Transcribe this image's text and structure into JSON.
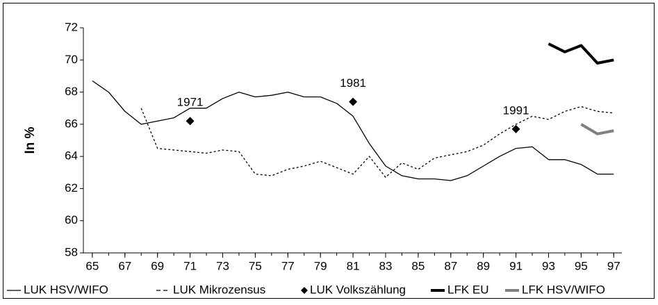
{
  "chart_data": {
    "type": "line",
    "y_label": "In %",
    "x": [
      65,
      66,
      67,
      68,
      69,
      70,
      71,
      72,
      73,
      74,
      75,
      76,
      77,
      78,
      79,
      80,
      81,
      82,
      83,
      84,
      85,
      86,
      87,
      88,
      89,
      90,
      91,
      92,
      93,
      94,
      95,
      96,
      97
    ],
    "xlim": [
      64.45,
      97.5
    ],
    "xticks": [
      65,
      67,
      69,
      71,
      73,
      75,
      77,
      79,
      81,
      83,
      85,
      87,
      89,
      91,
      93,
      95,
      97
    ],
    "ylim": [
      58,
      72
    ],
    "yticks": [
      58,
      60,
      62,
      64,
      66,
      68,
      70,
      72
    ],
    "series": [
      {
        "name": "LUK HSV/WIFO",
        "color": "#000000",
        "style": "solid",
        "width": 1.3,
        "values": [
          68.7,
          68.0,
          66.8,
          66.0,
          66.2,
          66.4,
          67.0,
          67.0,
          67.6,
          68.0,
          67.7,
          67.8,
          68.0,
          67.7,
          67.7,
          67.3,
          66.5,
          64.8,
          63.4,
          62.8,
          62.6,
          62.6,
          62.5,
          62.8,
          63.4,
          64.0,
          64.5,
          64.6,
          63.8,
          63.8,
          63.5,
          62.9,
          62.9
        ]
      },
      {
        "name": "LUK Mikrozensus",
        "color": "#000000",
        "style": "dashed",
        "width": 1.3,
        "values": [
          null,
          null,
          null,
          67.0,
          64.5,
          64.4,
          64.3,
          64.2,
          64.4,
          64.3,
          62.9,
          62.8,
          63.2,
          63.4,
          63.7,
          63.3,
          62.9,
          64.0,
          62.7,
          63.6,
          63.2,
          63.9,
          64.1,
          64.3,
          64.7,
          65.4,
          66.0,
          66.5,
          66.3,
          66.8,
          67.1,
          66.8,
          66.7
        ]
      },
      {
        "name": "LUK Volkszählung",
        "color": "#000000",
        "style": "markers",
        "width": 1,
        "values": [
          null,
          null,
          null,
          null,
          null,
          null,
          66.2,
          null,
          null,
          null,
          null,
          null,
          null,
          null,
          null,
          null,
          67.4,
          null,
          null,
          null,
          null,
          null,
          null,
          null,
          null,
          null,
          65.7,
          null,
          null,
          null,
          null,
          null,
          null
        ]
      },
      {
        "name": "LFK EU",
        "color": "#000000",
        "style": "solid",
        "width": 4,
        "values": [
          null,
          null,
          null,
          null,
          null,
          null,
          null,
          null,
          null,
          null,
          null,
          null,
          null,
          null,
          null,
          null,
          null,
          null,
          null,
          null,
          null,
          null,
          null,
          null,
          null,
          null,
          null,
          null,
          71.0,
          70.5,
          70.9,
          69.8,
          70.0
        ]
      },
      {
        "name": "LFK HSV/WIFO",
        "color": "#808080",
        "style": "solid",
        "width": 4,
        "values": [
          null,
          null,
          null,
          null,
          null,
          null,
          null,
          null,
          null,
          null,
          null,
          null,
          null,
          null,
          null,
          null,
          null,
          null,
          null,
          null,
          null,
          null,
          null,
          null,
          null,
          null,
          null,
          null,
          null,
          null,
          66.0,
          65.4,
          65.6
        ]
      }
    ],
    "annotations": [
      "1971",
      "1981",
      "1991"
    ]
  }
}
